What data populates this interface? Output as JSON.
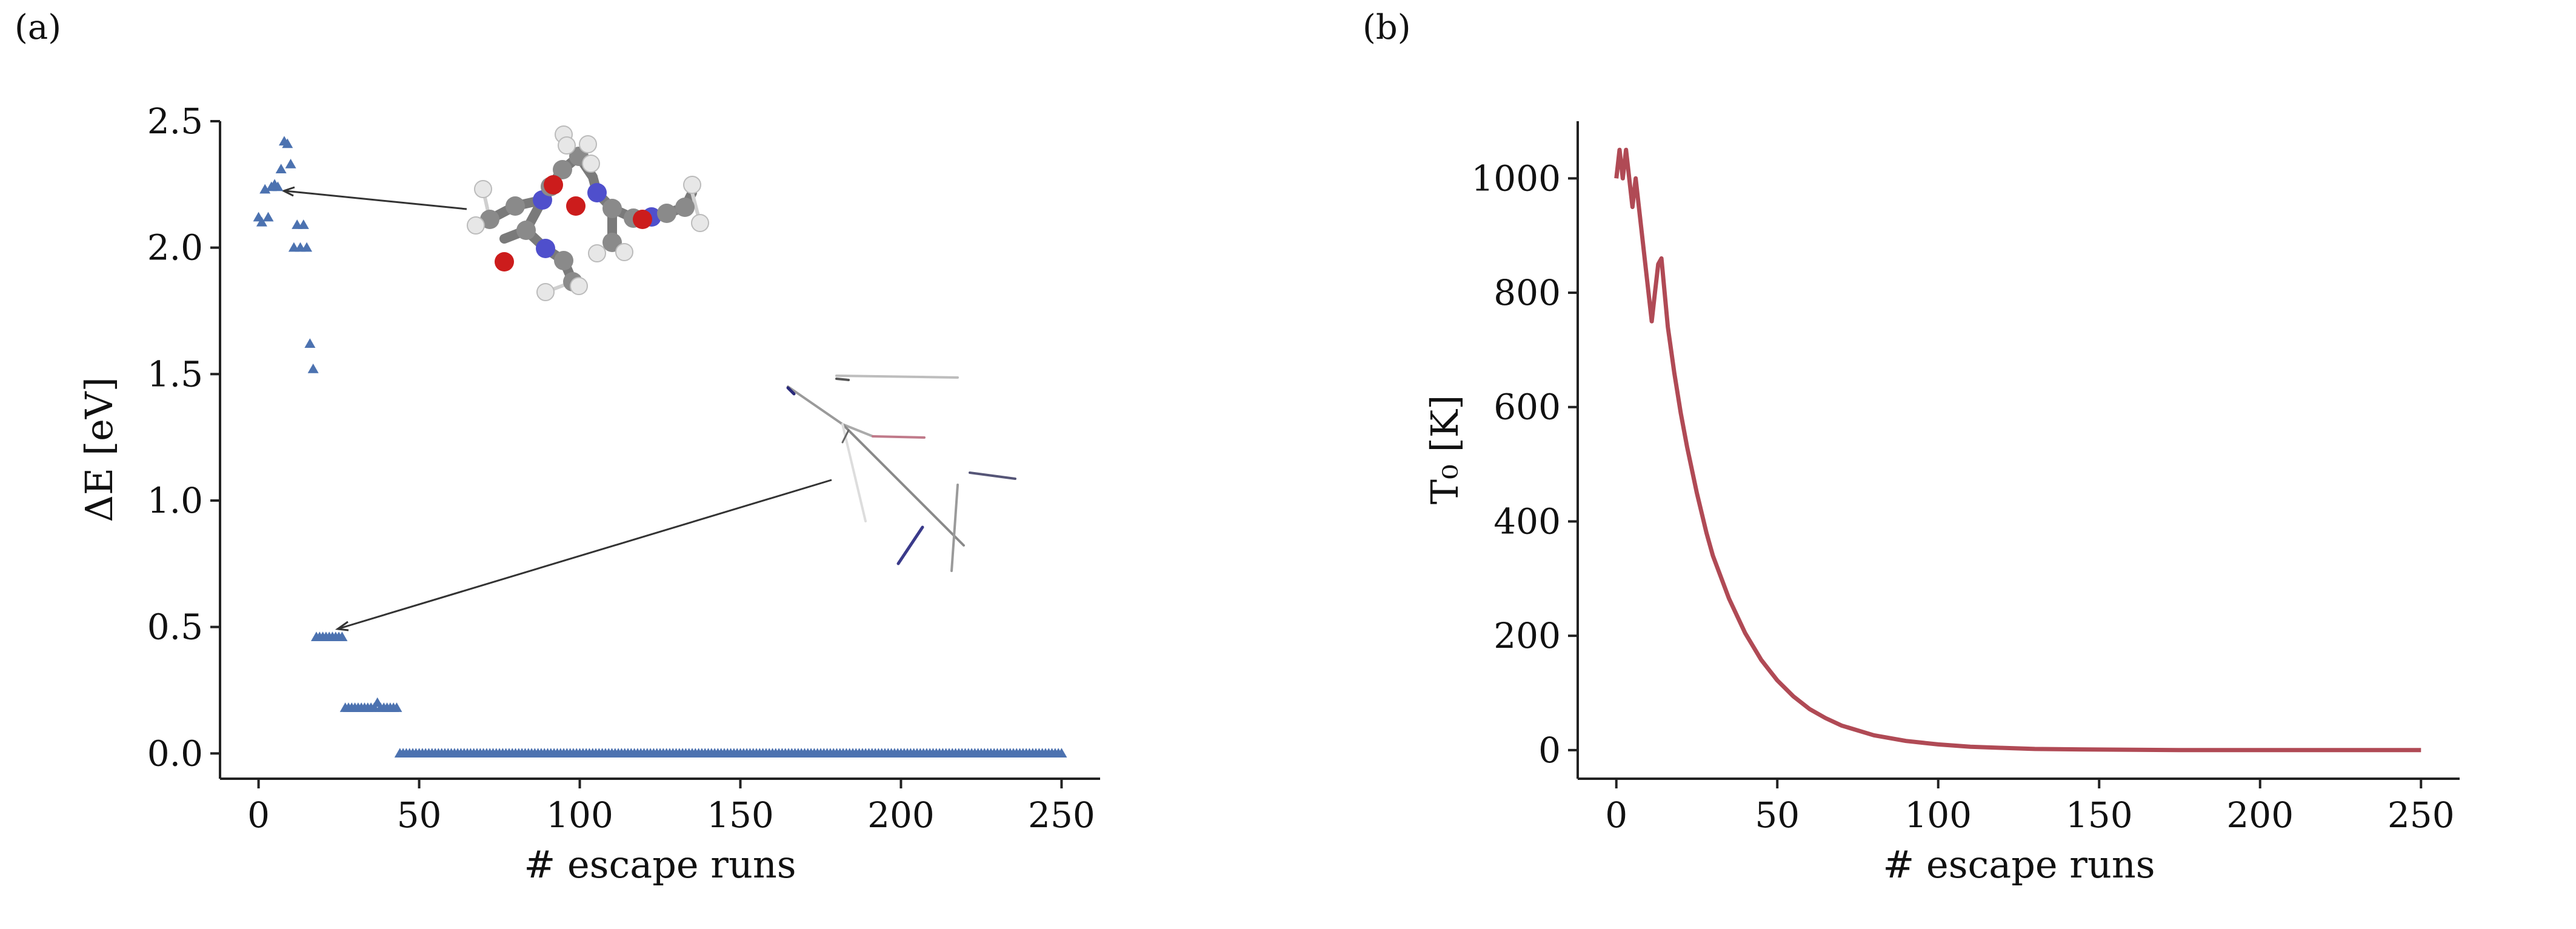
{
  "panels": {
    "a": {
      "label": "(a)"
    },
    "b": {
      "label": "(b)"
    }
  },
  "chart_data": [
    {
      "type": "scatter",
      "xlabel": "# escape runs",
      "ylabel": "ΔE [eV]",
      "xlim": [
        -12,
        262
      ],
      "ylim": [
        -0.1,
        2.5
      ],
      "xticks": [
        0,
        50,
        100,
        150,
        200,
        250
      ],
      "yticks": [
        0.0,
        0.5,
        1.0,
        1.5,
        2.0,
        2.5
      ],
      "xtick_labels": [
        "0",
        "50",
        "100",
        "150",
        "200",
        "250"
      ],
      "ytick_labels": [
        "0.0",
        "0.5",
        "1.0",
        "1.5",
        "2.0",
        "2.5"
      ],
      "marker": "triangle",
      "color": "#4c72b0",
      "series": [
        {
          "points": [
            [
              0,
              2.12
            ],
            [
              1,
              2.1
            ],
            [
              2,
              2.23
            ],
            [
              3,
              2.12
            ],
            [
              4,
              2.24
            ],
            [
              5,
              2.25
            ],
            [
              6,
              2.24
            ],
            [
              7,
              2.31
            ],
            [
              8,
              2.42
            ],
            [
              9,
              2.41
            ],
            [
              10,
              2.33
            ],
            [
              11,
              2.0
            ],
            [
              12,
              2.09
            ],
            [
              13,
              2.0
            ],
            [
              14,
              2.09
            ],
            [
              15,
              2.0
            ],
            [
              16,
              1.62
            ],
            [
              17,
              1.52
            ],
            [
              18,
              0.46
            ],
            [
              19,
              0.46
            ],
            [
              20,
              0.46
            ],
            [
              21,
              0.46
            ],
            [
              22,
              0.46
            ],
            [
              23,
              0.46
            ],
            [
              24,
              0.46
            ],
            [
              25,
              0.46
            ],
            [
              26,
              0.46
            ],
            [
              27,
              0.18
            ],
            [
              28,
              0.18
            ],
            [
              29,
              0.18
            ],
            [
              30,
              0.18
            ],
            [
              31,
              0.18
            ],
            [
              32,
              0.18
            ],
            [
              33,
              0.18
            ],
            [
              34,
              0.18
            ],
            [
              35,
              0.18
            ],
            [
              36,
              0.18
            ],
            [
              37,
              0.2
            ],
            [
              38,
              0.18
            ],
            [
              39,
              0.18
            ],
            [
              40,
              0.18
            ],
            [
              41,
              0.18
            ],
            [
              42,
              0.18
            ],
            [
              43,
              0.18
            ]
          ],
          "baseline_range": [
            44,
            250
          ],
          "baseline_value": 0.0
        }
      ],
      "annotations": [
        {
          "type": "arrow",
          "target": [
            7,
            2.22
          ],
          "points_to": "molecule structure image"
        },
        {
          "type": "arrow",
          "target": [
            24,
            0.49
          ],
          "points_to": "faint structure image"
        }
      ]
    },
    {
      "type": "line",
      "xlabel": "# escape runs",
      "ylabel": "T₀ [K]",
      "xlim": [
        -12,
        262
      ],
      "ylim": [
        -50,
        1100
      ],
      "xticks": [
        0,
        50,
        100,
        150,
        200,
        250
      ],
      "yticks": [
        0,
        200,
        400,
        600,
        800,
        1000
      ],
      "xtick_labels": [
        "0",
        "50",
        "100",
        "150",
        "200",
        "250"
      ],
      "ytick_labels": [
        "0",
        "200",
        "400",
        "600",
        "800",
        "1000"
      ],
      "color": "#b04a55",
      "series": [
        {
          "x": [
            0,
            1,
            2,
            3,
            4,
            5,
            6,
            7,
            8,
            9,
            10,
            11,
            12,
            13,
            14,
            15,
            16,
            17,
            18,
            20,
            22,
            25,
            28,
            30,
            35,
            40,
            45,
            50,
            55,
            60,
            65,
            70,
            80,
            90,
            100,
            110,
            120,
            130,
            150,
            175,
            200,
            225,
            250
          ],
          "y": [
            1000,
            1050,
            1000,
            1050,
            1000,
            950,
            1000,
            950,
            900,
            850,
            800,
            750,
            800,
            850,
            860,
            800,
            740,
            700,
            660,
            590,
            530,
            450,
            380,
            340,
            265,
            205,
            158,
            122,
            94,
            72,
            56,
            43,
            26,
            16,
            10,
            6,
            4,
            2,
            1,
            0,
            0,
            0,
            0
          ]
        }
      ]
    }
  ]
}
